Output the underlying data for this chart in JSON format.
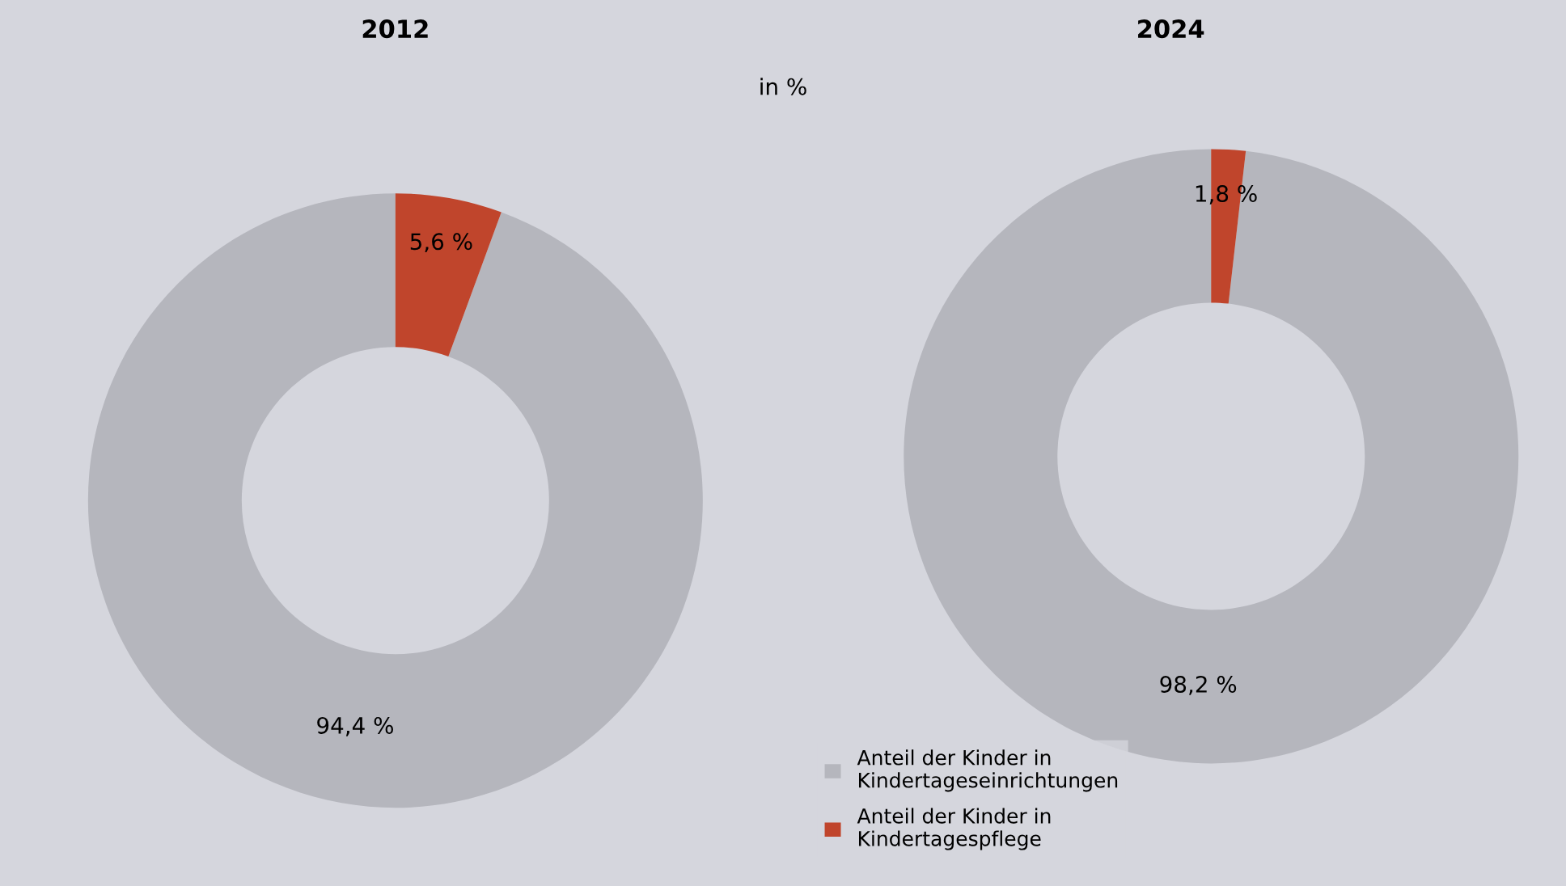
{
  "chart_data": [
    {
      "type": "donut",
      "title": "2012",
      "subtitle": "in %",
      "categories": [
        null,
        null
      ],
      "values": [
        94.4,
        5.6
      ],
      "colors": [
        "#b5b6bd",
        "#c0452c"
      ],
      "value_labels": [
        "94,4 %",
        "5,6 %"
      ],
      "legend": false
    },
    {
      "type": "donut",
      "title": "2024",
      "categories": [
        "Anteil der Kinder in Kindertageseinrichtungen",
        "Anteil der Kinder in Kindertagespflege"
      ],
      "values": [
        98.2,
        1.8
      ],
      "colors": [
        "#b5b6bd",
        "#c0452c"
      ],
      "value_labels": [
        "98,2 %",
        "1,8 %"
      ],
      "legend": "bottom left"
    }
  ]
}
